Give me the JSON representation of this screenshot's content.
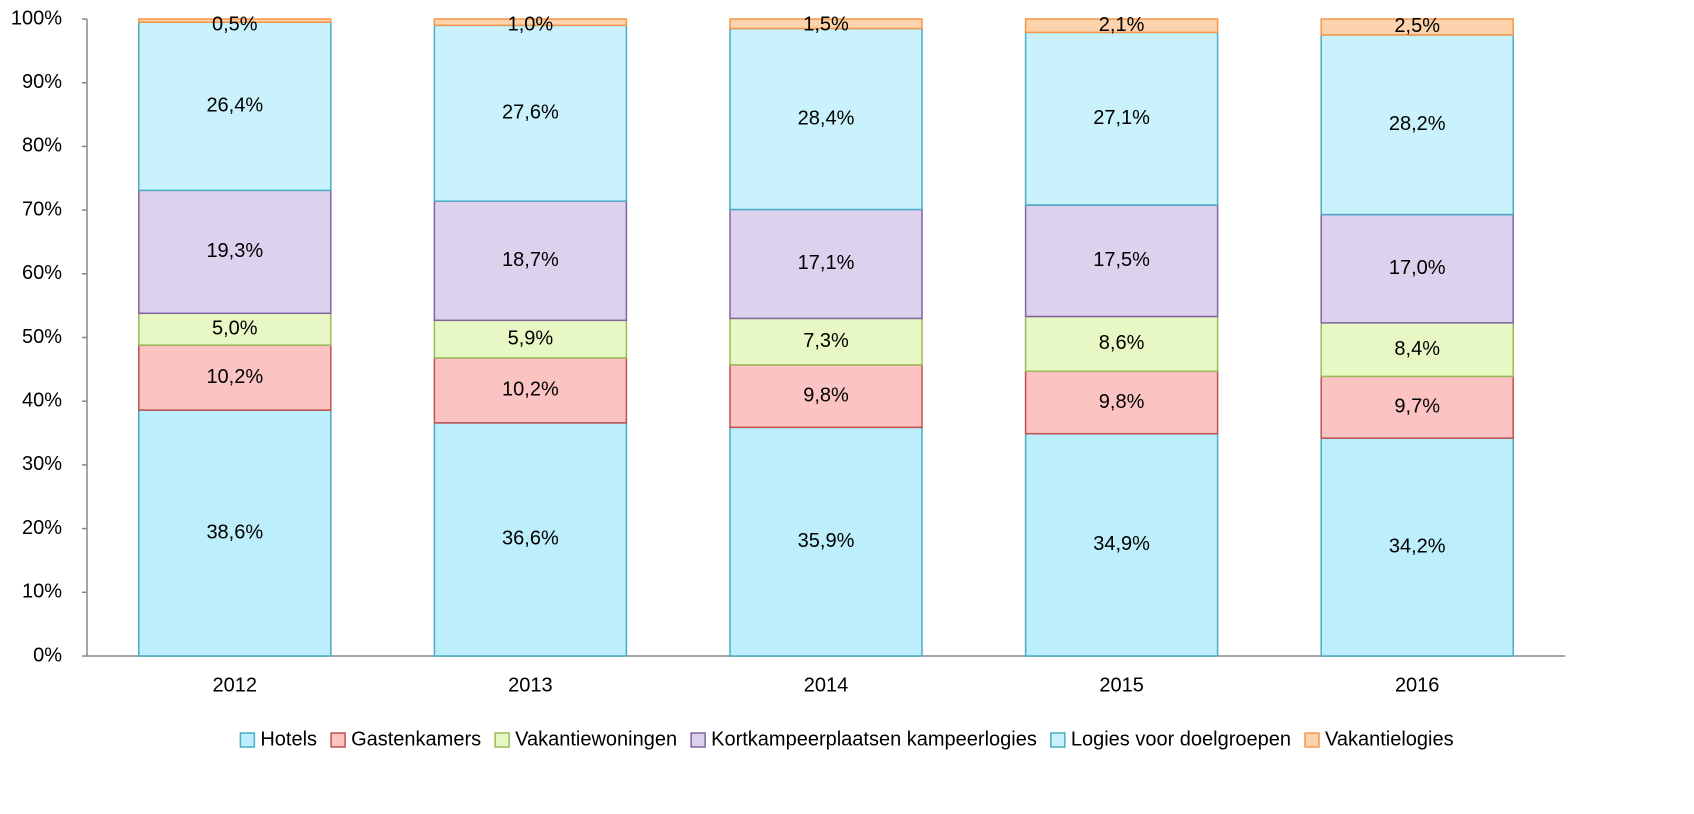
{
  "chart_data": {
    "type": "stacked_bar",
    "categories": [
      "2012",
      "2013",
      "2014",
      "2015",
      "2016"
    ],
    "series": [
      {
        "name": "Hotels",
        "color": "#bdeefb",
        "border": "#4bacc6",
        "values": [
          38.6,
          36.6,
          35.9,
          34.9,
          34.2
        ],
        "value_labels": [
          "38,6%",
          "36,6%",
          "35,9%",
          "34,9%",
          "34,2%"
        ]
      },
      {
        "name": "Gastenkamers",
        "color": "#fbc4c3",
        "border": "#c0504d",
        "values": [
          10.2,
          10.2,
          9.8,
          9.8,
          9.7
        ],
        "value_labels": [
          "10,2%",
          "10,2%",
          "9,8%",
          "9,8%",
          "9,7%"
        ]
      },
      {
        "name": "Vakantiewoningen",
        "color": "#e8f8c4",
        "border": "#9bbb59",
        "values": [
          5.0,
          5.9,
          7.3,
          8.6,
          8.4
        ],
        "value_labels": [
          "5,0%",
          "5,9%",
          "7,3%",
          "8,6%",
          "8,4%"
        ]
      },
      {
        "name": "Kortkampeerplaatsen kampeerlogies",
        "color": "#ddd2ee",
        "border": "#8064a2",
        "values": [
          19.3,
          18.7,
          17.1,
          17.5,
          17.0
        ],
        "value_labels": [
          "19,3%",
          "18,7%",
          "17,1%",
          "17,5%",
          "17,0%"
        ]
      },
      {
        "name": "Logies voor doelgroepen",
        "color": "#c9f2fc",
        "border": "#4bacc6",
        "values": [
          26.4,
          27.6,
          28.4,
          27.1,
          28.2
        ],
        "value_labels": [
          "26,4%",
          "27,6%",
          "28,4%",
          "27,1%",
          "28,2%"
        ]
      },
      {
        "name": "Vakantielogies",
        "color": "#fdd3ad",
        "border": "#f79646",
        "values": [
          0.5,
          1.0,
          1.5,
          2.1,
          2.5
        ],
        "value_labels": [
          "0,5%",
          "1,0%",
          "1,5%",
          "2,1%",
          "2,5%"
        ]
      }
    ],
    "ylim": [
      0,
      100
    ],
    "yticks": [
      {
        "value": 0,
        "label": "0%"
      },
      {
        "value": 10,
        "label": "10%"
      },
      {
        "value": 20,
        "label": "20%"
      },
      {
        "value": 30,
        "label": "30%"
      },
      {
        "value": 40,
        "label": "40%"
      },
      {
        "value": 50,
        "label": "50%"
      },
      {
        "value": 60,
        "label": "60%"
      },
      {
        "value": 70,
        "label": "70%"
      },
      {
        "value": 80,
        "label": "80%"
      },
      {
        "value": 90,
        "label": "90%"
      },
      {
        "value": 100,
        "label": "100%"
      }
    ],
    "legend": "bottom"
  }
}
